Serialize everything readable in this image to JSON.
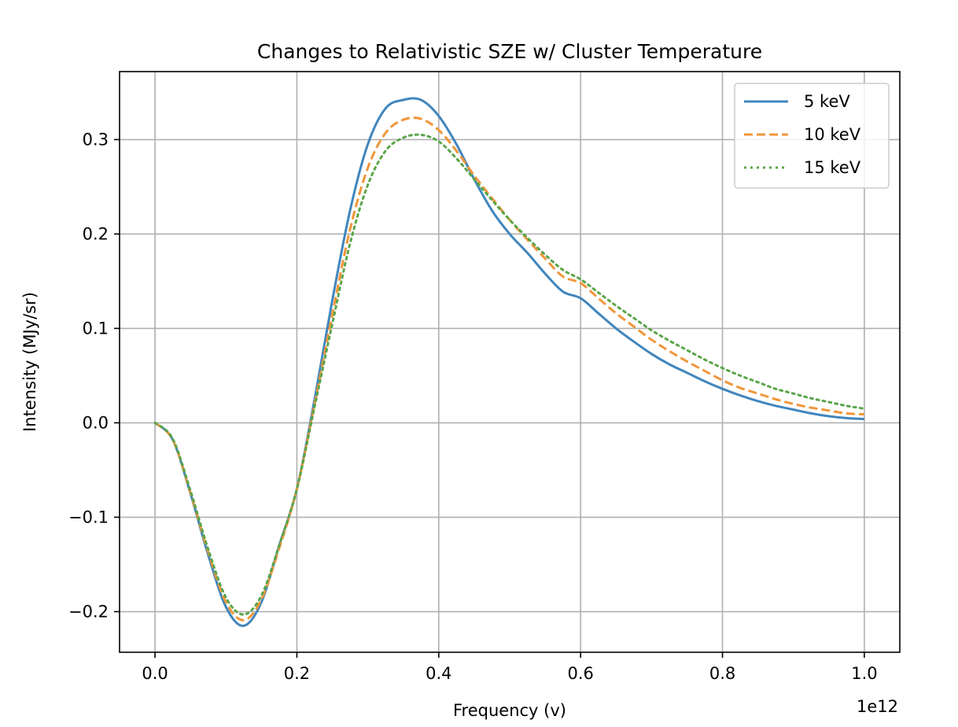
{
  "chart_data": {
    "type": "line",
    "title": "Changes to Relativistic SZE w/ Cluster Temperature",
    "xlabel": "Frequency (v)",
    "ylabel": "Intensity (MJy/sr)",
    "x_offset_label": "1e12",
    "xlim": [
      -0.05,
      1.05
    ],
    "ylim": [
      -0.243,
      0.372
    ],
    "x_ticks": [
      0.0,
      0.2,
      0.4,
      0.6,
      0.8,
      1.0
    ],
    "x_tick_labels": [
      "0.0",
      "0.2",
      "0.4",
      "0.6",
      "0.8",
      "1.0"
    ],
    "y_ticks": [
      -0.2,
      -0.1,
      0.0,
      0.1,
      0.2,
      0.3
    ],
    "y_tick_labels": [
      "−0.2",
      "−0.1",
      "0.0",
      "0.1",
      "0.2",
      "0.3"
    ],
    "grid": true,
    "legend_position": "top-right",
    "x": [
      0.0,
      0.025,
      0.05,
      0.075,
      0.1,
      0.125,
      0.15,
      0.175,
      0.2,
      0.225,
      0.25,
      0.275,
      0.3,
      0.325,
      0.35,
      0.375,
      0.4,
      0.425,
      0.45,
      0.475,
      0.5,
      0.525,
      0.55,
      0.575,
      0.6,
      0.625,
      0.65,
      0.675,
      0.7,
      0.725,
      0.75,
      0.775,
      0.8,
      0.825,
      0.85,
      0.875,
      0.9,
      0.925,
      0.95,
      0.975,
      1.0
    ],
    "series": [
      {
        "name": "5 keV",
        "color": "#4186bd",
        "style": "solid",
        "values": [
          0.0,
          -0.018,
          -0.075,
          -0.14,
          -0.195,
          -0.215,
          -0.19,
          -0.13,
          -0.07,
          0.025,
          0.13,
          0.225,
          0.295,
          0.333,
          0.342,
          0.342,
          0.325,
          0.295,
          0.258,
          0.225,
          0.2,
          0.18,
          0.158,
          0.139,
          0.132,
          0.116,
          0.1,
          0.086,
          0.073,
          0.062,
          0.053,
          0.044,
          0.036,
          0.029,
          0.023,
          0.018,
          0.014,
          0.01,
          0.007,
          0.005,
          0.004
        ]
      },
      {
        "name": "10 keV",
        "color": "#f0963a",
        "style": "dashed",
        "values": [
          0.0,
          -0.018,
          -0.074,
          -0.137,
          -0.19,
          -0.209,
          -0.187,
          -0.133,
          -0.07,
          0.02,
          0.115,
          0.205,
          0.27,
          0.307,
          0.321,
          0.322,
          0.31,
          0.288,
          0.262,
          0.238,
          0.215,
          0.194,
          0.174,
          0.155,
          0.148,
          0.132,
          0.116,
          0.102,
          0.088,
          0.076,
          0.065,
          0.055,
          0.045,
          0.037,
          0.031,
          0.025,
          0.02,
          0.016,
          0.013,
          0.01,
          0.009
        ]
      },
      {
        "name": "15 keV",
        "color": "#5ba54a",
        "style": "dotted",
        "values": [
          0.0,
          -0.017,
          -0.072,
          -0.134,
          -0.185,
          -0.203,
          -0.183,
          -0.13,
          -0.07,
          0.017,
          0.105,
          0.19,
          0.252,
          0.288,
          0.302,
          0.305,
          0.298,
          0.28,
          0.258,
          0.236,
          0.215,
          0.196,
          0.178,
          0.162,
          0.152,
          0.138,
          0.124,
          0.111,
          0.098,
          0.087,
          0.077,
          0.067,
          0.058,
          0.05,
          0.043,
          0.036,
          0.031,
          0.026,
          0.022,
          0.018,
          0.015
        ]
      }
    ]
  }
}
